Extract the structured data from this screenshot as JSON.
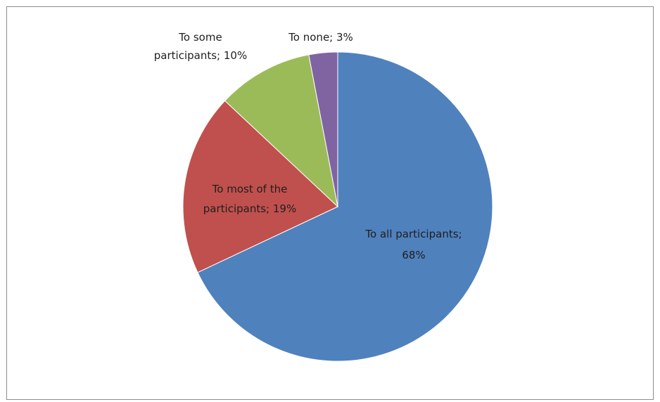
{
  "chart_data": {
    "type": "pie",
    "title": "",
    "series": [
      {
        "values": [
          68,
          19,
          10,
          3
        ],
        "categories": [
          "To all participants",
          "To most of the participants",
          "To some participants",
          "To none"
        ]
      }
    ],
    "slices": [
      {
        "label": "To all participants",
        "value": 68,
        "value_text": "68%",
        "color": "#4F81BD",
        "label_lines": [
          "To all participants;",
          "68%"
        ]
      },
      {
        "label": "To most of the participants",
        "value": 19,
        "value_text": "19%",
        "color": "#C0504D",
        "label_lines": [
          "To most of the",
          "participants; 19%"
        ]
      },
      {
        "label": "To some participants",
        "value": 10,
        "value_text": "10%",
        "color": "#9BBB59",
        "label_lines": [
          "To some",
          "participants; 10%"
        ]
      },
      {
        "label": "To none",
        "value": 3,
        "value_text": "3%",
        "color": "#8064A2",
        "label_lines": [
          "To none; 3%"
        ]
      }
    ],
    "legend": "none"
  }
}
